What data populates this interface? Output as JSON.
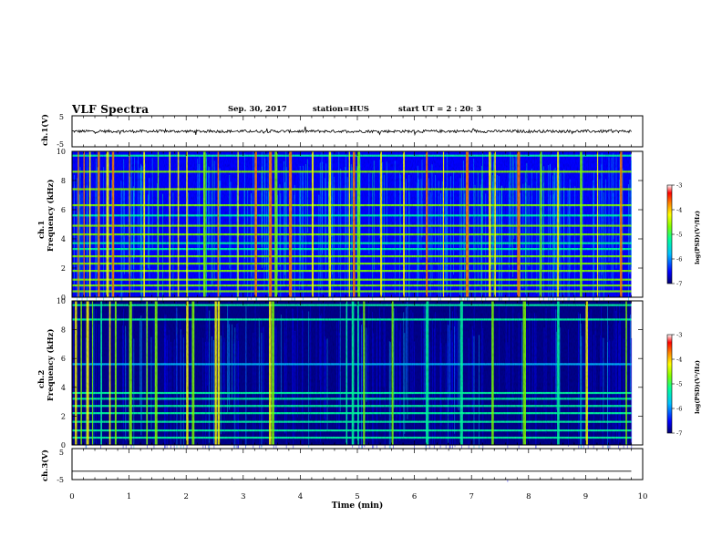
{
  "header": {
    "title": "VLF Spectra",
    "date": "Sep. 30, 2017",
    "station": "station=HUS",
    "start_ut": "start UT =  2 : 20: 3"
  },
  "chart_data": [
    {
      "type": "line",
      "panel": "ch1-waveform",
      "ylabel": "ch.1(V)",
      "ylim": [
        -5,
        5
      ],
      "yticks": [
        "5",
        "-5"
      ],
      "xlim": [
        0,
        10
      ],
      "x_extent_min": [
        0,
        9.8
      ],
      "trace_level_v": 0,
      "trace_style": "noisy"
    },
    {
      "type": "heatmap",
      "panel": "ch1-spectrogram",
      "ylabel": "Frequency (kHz)",
      "channel_label": "ch.1",
      "ylim": [
        0,
        10
      ],
      "yticks": [
        "0",
        "2",
        "4",
        "6",
        "8",
        "10"
      ],
      "xlim": [
        0,
        9.8
      ],
      "colorbar": {
        "label": "log(PSD)(V²/Hz)",
        "range": [
          -7,
          -3
        ],
        "ticks": [
          "-3",
          "-4",
          "-5",
          "-6",
          "-7"
        ],
        "colormap": [
          "#00008b",
          "#0000ff",
          "#00bfff",
          "#00ffa0",
          "#7fff00",
          "#ffff00",
          "#ff7f00",
          "#ff0000",
          "#ffffff"
        ]
      },
      "background_level": -6.3,
      "horizontal_bands_khz": [
        0.4,
        0.8,
        1.2,
        1.8,
        2.3,
        2.8,
        3.3,
        3.7,
        4.3,
        4.9,
        5.6,
        6.3,
        7.4,
        8.6,
        9.7
      ],
      "vertical_bursts_min": [
        0.1,
        0.2,
        0.3,
        0.45,
        0.6,
        0.7,
        1.0,
        1.25,
        1.5,
        1.7,
        1.85,
        2.0,
        2.3,
        2.55,
        2.9,
        3.2,
        3.45,
        3.55,
        3.8,
        4.2,
        4.5,
        4.85,
        4.92,
        5.0,
        5.4,
        5.8,
        6.2,
        6.5,
        6.9,
        7.3,
        7.4,
        7.8,
        8.2,
        8.5,
        8.9,
        9.2,
        9.6
      ]
    },
    {
      "type": "heatmap",
      "panel": "ch2-spectrogram",
      "ylabel": "Frequency (kHz)",
      "channel_label": "ch.2",
      "ylim": [
        0,
        10
      ],
      "yticks": [
        "0",
        "2",
        "4",
        "6",
        "8",
        "10"
      ],
      "xlim": [
        0,
        9.8
      ],
      "colorbar": {
        "label": "log(PSD)(V²/Hz)",
        "range": [
          -7,
          -3
        ],
        "ticks": [
          "-3",
          "-4",
          "-5",
          "-6",
          "-7"
        ],
        "colormap": [
          "#00008b",
          "#0000ff",
          "#00bfff",
          "#00ffa0",
          "#7fff00",
          "#ffff00",
          "#ff7f00",
          "#ff0000",
          "#ffffff"
        ]
      },
      "background_level": -6.8,
      "horizontal_bands_khz": [
        0.5,
        1.0,
        1.6,
        2.2,
        2.7,
        3.2,
        3.6,
        5.6,
        8.7,
        9.7
      ],
      "vertical_bursts_min": [
        0.05,
        0.15,
        0.25,
        0.35,
        0.5,
        0.65,
        0.75,
        1.0,
        1.3,
        1.45,
        2.0,
        2.1,
        2.5,
        2.55,
        3.45,
        3.5,
        4.8,
        4.9,
        5.0,
        5.1,
        5.6,
        6.2,
        6.8,
        7.35,
        7.9,
        8.5,
        9.0,
        9.7
      ]
    },
    {
      "type": "line",
      "panel": "ch3-waveform",
      "ylabel": "ch.3(V)",
      "ylim": [
        -5,
        5
      ],
      "yticks": [
        "5",
        "-5"
      ],
      "xlim": [
        0,
        10
      ],
      "x_extent_min": [
        0,
        9.8
      ],
      "trace_level_v": -2.3,
      "trace_style": "flat"
    }
  ],
  "xaxis": {
    "label": "Time (min)",
    "ticks": [
      "0",
      "1",
      "2",
      "3",
      "4",
      "5",
      "6",
      "7",
      "8",
      "9",
      "10"
    ],
    "range": [
      0,
      10
    ]
  }
}
